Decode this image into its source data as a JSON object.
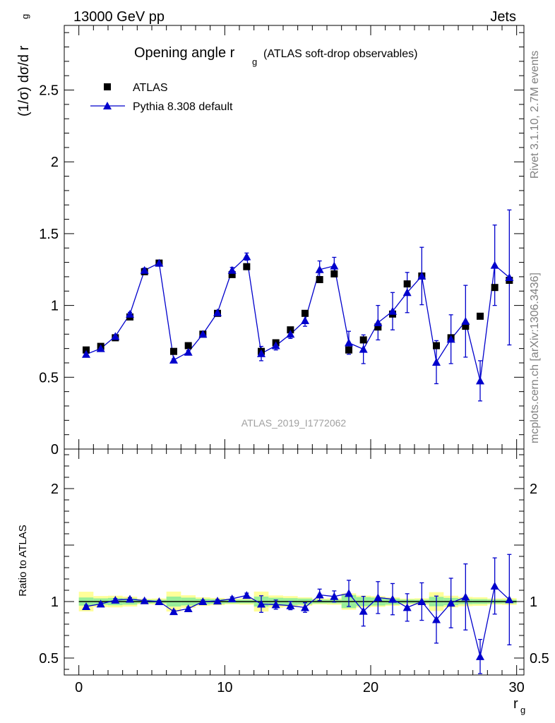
{
  "header": {
    "process": "13000 GeV pp",
    "category": "Jets"
  },
  "side": {
    "rivet": "Rivet 3.1.10,  2.7M events",
    "mcplots": "mcplots.cern.ch [arXiv:1306.3436]"
  },
  "chart_data": {
    "type": "scatter",
    "title": "Opening angle r_g (ATLAS soft-drop observables)",
    "title_main": "Opening angle r",
    "title_sub": "g",
    "title_rest": "(ATLAS soft-drop observables)",
    "analysis_id": "ATLAS_2019_I1772062",
    "xlabel": "r",
    "xlabel_sub": "g",
    "ylabel": "(1/σ) dσ/d r",
    "ylabel_sub": "g",
    "ratio_ylabel": "Ratio to ATLAS",
    "xlim": [
      -1,
      30.5
    ],
    "ylim": [
      0,
      2.95
    ],
    "ratio_ylim": [
      0.35,
      2.35
    ],
    "xticks": [
      "0",
      "10",
      "20",
      "30"
    ],
    "yticks": [
      "0",
      "0.5",
      "1",
      "1.5",
      "2",
      "2.5"
    ],
    "ratio_yticks": [
      "0.5",
      "1",
      "2"
    ],
    "legend_position": "top-left",
    "x": [
      0.5,
      1.5,
      2.5,
      3.5,
      4.5,
      5.5,
      6.5,
      7.5,
      8.5,
      9.5,
      10.5,
      11.5,
      12.5,
      13.5,
      14.5,
      15.5,
      16.5,
      17.5,
      18.5,
      19.5,
      20.5,
      21.5,
      22.5,
      23.5,
      24.5,
      25.5,
      26.5,
      27.5,
      28.5,
      29.5
    ],
    "series": [
      {
        "name": "ATLAS",
        "color": "#000000",
        "marker": "square",
        "values": [
          0.69,
          0.715,
          0.775,
          0.92,
          1.235,
          1.295,
          0.68,
          0.72,
          0.8,
          0.945,
          1.215,
          1.27,
          0.68,
          0.74,
          0.83,
          0.945,
          1.18,
          1.22,
          0.69,
          0.76,
          0.85,
          0.94,
          1.15,
          1.205,
          0.72,
          0.775,
          0.855,
          0.925,
          1.125,
          1.175
        ],
        "band_total": [
          0.06,
          0.035,
          0.04,
          0.04,
          0.03,
          0.035,
          0.06,
          0.04,
          0.03,
          0.03,
          0.03,
          0.035,
          0.06,
          0.04,
          0.04,
          0.035,
          0.03,
          0.035,
          0.05,
          0.04,
          0.04,
          0.035,
          0.03,
          0.035,
          0.06,
          0.04,
          0.035,
          0.035,
          0.03,
          0.035
        ],
        "band_stat": [
          0.025,
          0.02,
          0.025,
          0.025,
          0.02,
          0.02,
          0.03,
          0.025,
          0.02,
          0.02,
          0.02,
          0.02,
          0.03,
          0.025,
          0.025,
          0.025,
          0.02,
          0.02,
          0.04,
          0.03,
          0.03,
          0.025,
          0.02,
          0.02,
          0.03,
          0.025,
          0.02,
          0.02,
          0.02,
          0.02
        ]
      },
      {
        "name": "Pythia 8.308 default",
        "color": "#0000cc",
        "marker": "triangle",
        "values": [
          0.66,
          0.7,
          0.785,
          0.94,
          1.245,
          1.295,
          0.62,
          0.675,
          0.8,
          0.95,
          1.245,
          1.34,
          0.665,
          0.72,
          0.8,
          0.895,
          1.25,
          1.275,
          0.74,
          0.695,
          0.88,
          0.96,
          1.09,
          1.205,
          0.605,
          0.765,
          0.89,
          0.475,
          1.28,
          1.195
        ],
        "err": [
          0.008,
          0.008,
          0.01,
          0.012,
          0.015,
          0.015,
          0.008,
          0.01,
          0.01,
          0.012,
          0.02,
          0.025,
          0.05,
          0.03,
          0.03,
          0.04,
          0.06,
          0.06,
          0.08,
          0.1,
          0.12,
          0.13,
          0.14,
          0.2,
          0.15,
          0.17,
          0.25,
          0.14,
          0.28,
          0.47
        ]
      }
    ]
  }
}
